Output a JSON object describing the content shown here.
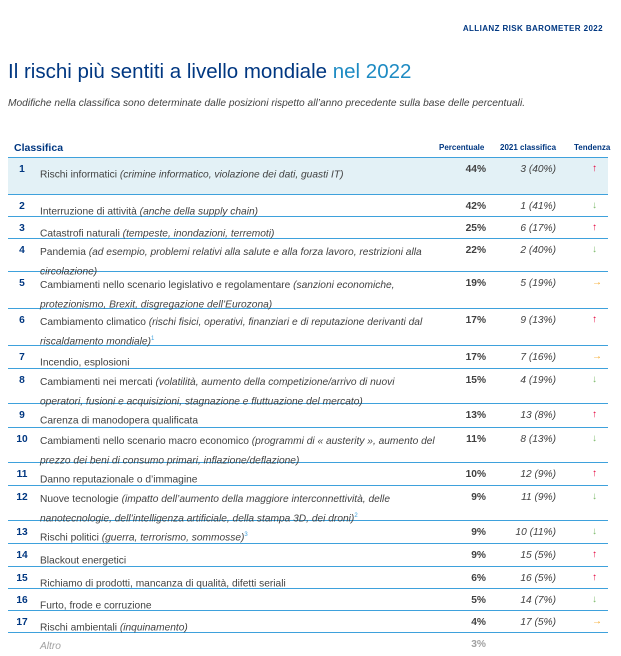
{
  "brand": "ALLIANZ RISK BAROMETER 2022",
  "title": {
    "main": "Il rischi più sentiti a livello mondiale",
    "highlight": "nel 2022"
  },
  "subtitle": "Modifiche nella classifica sono determinate dalle posizioni rispetto all’anno precedente sulla base delle percentuali.",
  "headers": {
    "rank": "Classifica",
    "pct": "Percentuale",
    "prev": "2021  classifica",
    "trend": "Tendenza"
  },
  "colors": {
    "up": "#e4003a",
    "down": "#7cb96a",
    "same": "#f5a623",
    "accent": "#003781",
    "line": "#3ea1dc"
  },
  "rows": [
    {
      "rank": "1",
      "main": "Rischi informatici ",
      "detail": "(crimine informatico, violazione dei dati, guasti IT)",
      "note": "",
      "pct": "44%",
      "prev": "3 (40%)",
      "trend": "up"
    },
    {
      "rank": "2",
      "main": "Interruzione di attività ",
      "detail": "(anche della supply chain)",
      "note": "",
      "pct": "42%",
      "prev": "1 (41%)",
      "trend": "down"
    },
    {
      "rank": "3",
      "main": "Catastrofi naturali ",
      "detail": "(tempeste, inondazioni, terremoti)",
      "note": "",
      "pct": "25%",
      "prev": "6 (17%)",
      "trend": "up"
    },
    {
      "rank": "4",
      "main": "Pandemia ",
      "detail": "(ad esempio, problemi relativi alla salute e alla forza lavoro, restrizioni alla circolazione)",
      "note": "",
      "pct": "22%",
      "prev": "2 (40%)",
      "trend": "down"
    },
    {
      "rank": "5",
      "main": "Cambiamenti nello scenario legislativo e regolamentare ",
      "detail": "(sanzioni economiche, protezionismo, Brexit, disgregazione dell’Eurozona)",
      "note": "",
      "pct": "19%",
      "prev": "5 (19%)",
      "trend": "same"
    },
    {
      "rank": "6",
      "main": "Cambiamento climatico ",
      "detail": "(rischi fisici, operativi, finanziari e di reputazione derivanti dal riscaldamento mondiale)",
      "note": "1",
      "pct": "17%",
      "prev": "9 (13%)",
      "trend": "up"
    },
    {
      "rank": "7",
      "main": "Incendio, esplosioni",
      "detail": "",
      "note": "",
      "pct": "17%",
      "prev": "7 (16%)",
      "trend": "same"
    },
    {
      "rank": "8",
      "main": "Cambiamenti nei mercati ",
      "detail": "(volatilità, aumento della competizione/arrivo di nuovi operatori, fusioni e acquisizioni, stagnazione e fluttuazione del mercato)",
      "note": "",
      "pct": "15%",
      "prev": "4 (19%)",
      "trend": "down"
    },
    {
      "rank": "9",
      "main": "Carenza di manodopera qualificata",
      "detail": "",
      "note": "",
      "pct": "13%",
      "prev": "13 (8%)",
      "trend": "up"
    },
    {
      "rank": "10",
      "main": "Cambiamenti nello scenario macro economico ",
      "detail": "(programmi di « austerity », aumento del prezzo dei beni di consumo primari, inflazione/deflazione)",
      "note": "",
      "pct": "11%",
      "prev": "8 (13%)",
      "trend": "down"
    },
    {
      "rank": "11",
      "main": "Danno reputazionale o d’immagine",
      "detail": "",
      "note": "",
      "pct": "10%",
      "prev": "12 (9%)",
      "trend": "up"
    },
    {
      "rank": "12",
      "main": "Nuove tecnologie ",
      "detail": "(impatto dell’aumento della maggiore interconnettività, delle nanotecnologie, dell’intelligenza artificiale, della stampa 3D, dei droni)",
      "note": "2",
      "pct": "9%",
      "prev": "11 (9%)",
      "trend": "down"
    },
    {
      "rank": "13",
      "main": "Rischi politici ",
      "detail": "(guerra, terrorismo, sommosse)",
      "note": "3",
      "pct": "9%",
      "prev": "10 (11%)",
      "trend": "down"
    },
    {
      "rank": "14",
      "main": "Blackout energetici",
      "detail": "",
      "note": "",
      "pct": "9%",
      "prev": "15 (5%)",
      "trend": "up"
    },
    {
      "rank": "15",
      "main": "Richiamo di prodotti, mancanza di qualità, difetti seriali",
      "detail": "",
      "note": "",
      "pct": "6%",
      "prev": "16 (5%)",
      "trend": "up"
    },
    {
      "rank": "16",
      "main": "Furto, frode e corruzione",
      "detail": "",
      "note": "",
      "pct": "5%",
      "prev": "14 (7%)",
      "trend": "down"
    },
    {
      "rank": "17",
      "main": "Rischi ambientali ",
      "detail": "(inquinamento)",
      "note": "",
      "pct": "4%",
      "prev": "17 (5%)",
      "trend": "same"
    }
  ],
  "other": {
    "label": "Altro",
    "pct": "3%"
  }
}
